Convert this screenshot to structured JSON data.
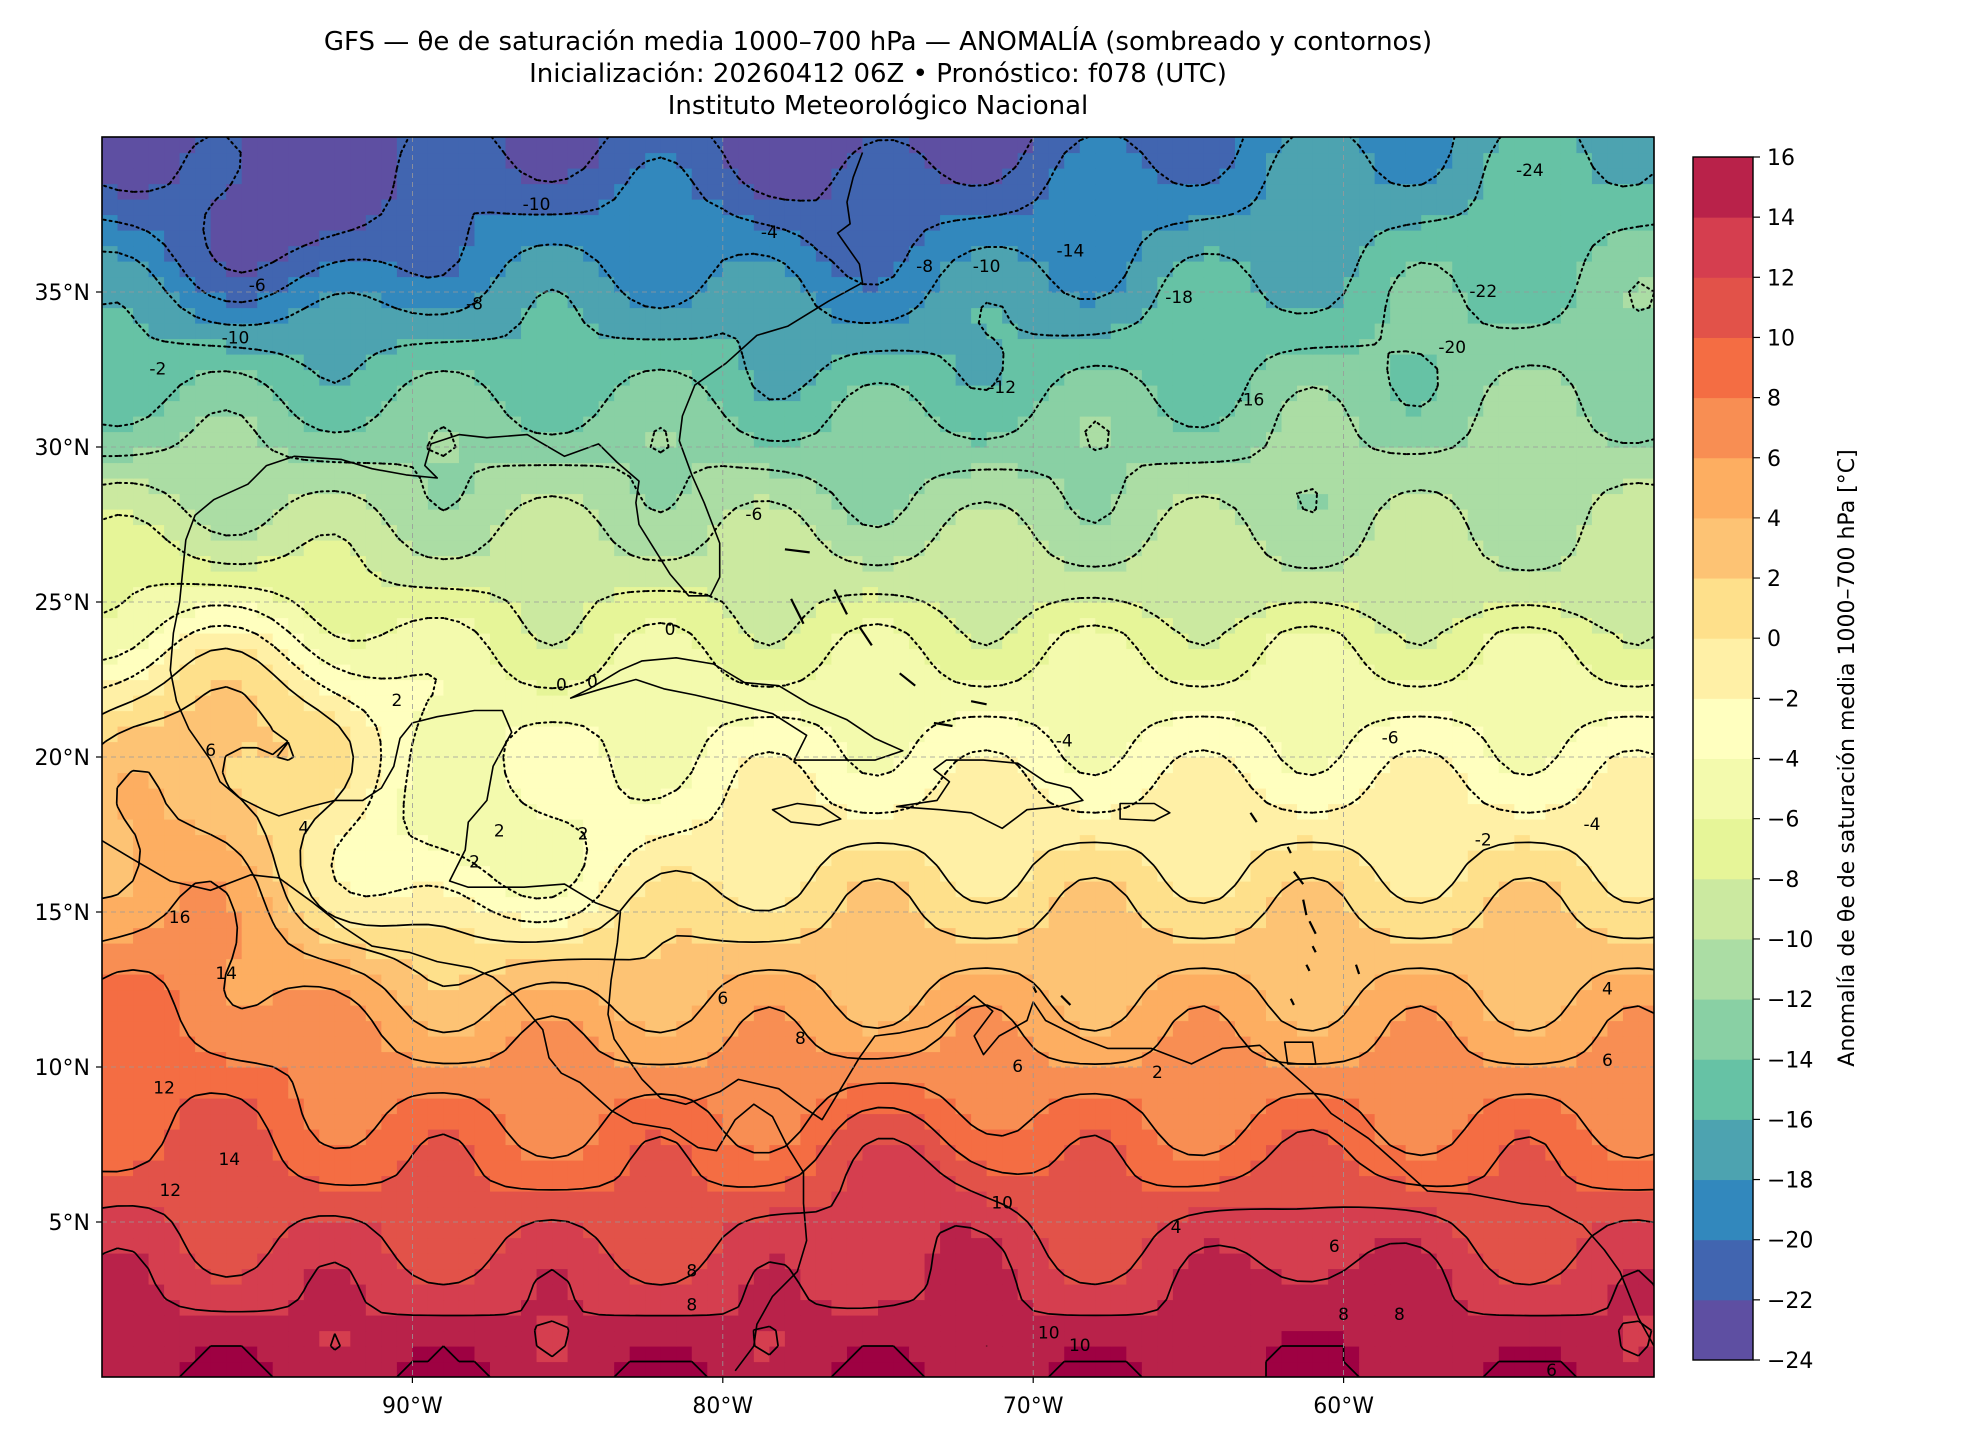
{
  "header": {
    "title_line1": "GFS — θe de saturación media 1000–700 hPa — ANOMALÍA (sombreado y contornos)",
    "title_line2": "Inicialización: 20260412 06Z   •   Pronóstico: f078 (UTC)",
    "title_line3": "Instituto Meteorológico Nacional"
  },
  "map": {
    "lon_range": [
      -100,
      -50
    ],
    "lat_range": [
      0,
      40
    ],
    "lon_ticks": [
      {
        "value": -90,
        "label": "90°W"
      },
      {
        "value": -80,
        "label": "80°W"
      },
      {
        "value": -70,
        "label": "70°W"
      },
      {
        "value": -60,
        "label": "60°W"
      }
    ],
    "lat_ticks": [
      {
        "value": 35,
        "label": "35°N"
      },
      {
        "value": 30,
        "label": "30°N"
      },
      {
        "value": 25,
        "label": "25°N"
      },
      {
        "value": 20,
        "label": "20°N"
      },
      {
        "value": 15,
        "label": "15°N"
      },
      {
        "value": 10,
        "label": "10°N"
      },
      {
        "value": 5,
        "label": "5°N"
      }
    ],
    "gridlines": true,
    "contour_labels": [
      {
        "lon": -86,
        "lat": 37.8,
        "text": "-10"
      },
      {
        "lon": -78.5,
        "lat": 36.9,
        "text": "-4"
      },
      {
        "lon": -73.5,
        "lat": 35.8,
        "text": "-8"
      },
      {
        "lon": -71.5,
        "lat": 35.8,
        "text": "-10"
      },
      {
        "lon": -68.8,
        "lat": 36.3,
        "text": "-14"
      },
      {
        "lon": -65.3,
        "lat": 34.8,
        "text": "-18"
      },
      {
        "lon": -55.5,
        "lat": 35.0,
        "text": "-22"
      },
      {
        "lon": -56.5,
        "lat": 33.2,
        "text": "-20"
      },
      {
        "lon": -63.0,
        "lat": 31.5,
        "text": "-16"
      },
      {
        "lon": -71.0,
        "lat": 31.9,
        "text": "-12"
      },
      {
        "lon": -54.0,
        "lat": 38.9,
        "text": "-24"
      },
      {
        "lon": -95.0,
        "lat": 35.2,
        "text": "-6"
      },
      {
        "lon": -88.0,
        "lat": 34.6,
        "text": "-8"
      },
      {
        "lon": -95.7,
        "lat": 33.5,
        "text": "-10"
      },
      {
        "lon": -98.2,
        "lat": 32.5,
        "text": "-2"
      },
      {
        "lon": -79.0,
        "lat": 27.8,
        "text": "-6"
      },
      {
        "lon": -69.0,
        "lat": 20.5,
        "text": "-4"
      },
      {
        "lon": -58.5,
        "lat": 20.6,
        "text": "-6"
      },
      {
        "lon": -55.5,
        "lat": 17.3,
        "text": "-2"
      },
      {
        "lon": -52.0,
        "lat": 17.8,
        "text": "-4"
      },
      {
        "lon": -81.7,
        "lat": 24.1,
        "text": "0"
      },
      {
        "lon": -85.2,
        "lat": 22.3,
        "text": "0"
      },
      {
        "lon": -84.2,
        "lat": 22.4,
        "text": "0"
      },
      {
        "lon": -90.5,
        "lat": 21.8,
        "text": "2"
      },
      {
        "lon": -96.5,
        "lat": 20.2,
        "text": "6"
      },
      {
        "lon": -93.5,
        "lat": 17.7,
        "text": "4"
      },
      {
        "lon": -87.2,
        "lat": 17.6,
        "text": "2"
      },
      {
        "lon": -88.0,
        "lat": 16.6,
        "text": "2"
      },
      {
        "lon": -84.5,
        "lat": 17.5,
        "text": "2"
      },
      {
        "lon": -80.0,
        "lat": 12.2,
        "text": "6"
      },
      {
        "lon": -77.5,
        "lat": 10.9,
        "text": "8"
      },
      {
        "lon": -70.5,
        "lat": 10.0,
        "text": "6"
      },
      {
        "lon": -66.0,
        "lat": 9.8,
        "text": "2"
      },
      {
        "lon": -51.5,
        "lat": 10.2,
        "text": "6"
      },
      {
        "lon": -51.5,
        "lat": 12.5,
        "text": "4"
      },
      {
        "lon": -97.5,
        "lat": 14.8,
        "text": "16"
      },
      {
        "lon": -96.0,
        "lat": 13.0,
        "text": "14"
      },
      {
        "lon": -98.0,
        "lat": 9.3,
        "text": "12"
      },
      {
        "lon": -95.9,
        "lat": 7.0,
        "text": "14"
      },
      {
        "lon": -97.8,
        "lat": 6.0,
        "text": "12"
      },
      {
        "lon": -71.0,
        "lat": 5.6,
        "text": "10"
      },
      {
        "lon": -81.0,
        "lat": 3.4,
        "text": "8"
      },
      {
        "lon": -81.0,
        "lat": 2.3,
        "text": "8"
      },
      {
        "lon": -69.5,
        "lat": 1.4,
        "text": "10"
      },
      {
        "lon": -68.5,
        "lat": 1.0,
        "text": "10"
      },
      {
        "lon": -60.0,
        "lat": 2.0,
        "text": "8"
      },
      {
        "lon": -58.2,
        "lat": 2.0,
        "text": "8"
      },
      {
        "lon": -60.3,
        "lat": 4.2,
        "text": "6"
      },
      {
        "lon": -65.4,
        "lat": 4.8,
        "text": "4"
      },
      {
        "lon": -53.3,
        "lat": 0.2,
        "text": "6"
      }
    ]
  },
  "colorbar": {
    "label": "Anomalía de θe de saturación media 1000–700 hPa [°C]",
    "levels": [
      -24,
      -22,
      -20,
      -18,
      -16,
      -14,
      -12,
      -10,
      -8,
      -6,
      -4,
      -2,
      0,
      2,
      4,
      6,
      8,
      10,
      12,
      14,
      16
    ],
    "colors": [
      "#5e4fa2",
      "#4165b0",
      "#3288bd",
      "#4da3b0",
      "#66c2a5",
      "#89d0a4",
      "#abdda4",
      "#cbe9a0",
      "#e6f598",
      "#f3faad",
      "#ffffbf",
      "#fff0a6",
      "#fee08b",
      "#fdc374",
      "#fdae61",
      "#f88e53",
      "#f46d43",
      "#e25249",
      "#d53e4f",
      "#b9224a",
      "#9e0142"
    ],
    "tick_labels": [
      "−24",
      "−22",
      "−20",
      "−18",
      "−16",
      "−14",
      "−12",
      "−10",
      "−8",
      "−6",
      "−4",
      "−2",
      "0",
      "2",
      "4",
      "6",
      "8",
      "10",
      "12",
      "14",
      "16"
    ]
  }
}
